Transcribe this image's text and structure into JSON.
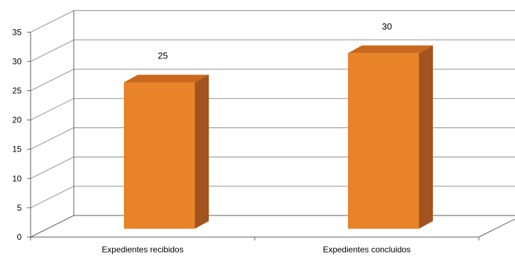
{
  "chart_data": {
    "type": "bar",
    "style": "3d-column",
    "categories": [
      "Expedientes recibidos",
      "Expedientes concluidos"
    ],
    "values": [
      25,
      30
    ],
    "data_labels": [
      "25",
      "30"
    ],
    "title": "",
    "xlabel": "",
    "ylabel": "",
    "ylim": [
      0,
      35
    ],
    "yticks": [
      "0",
      "5",
      "10",
      "15",
      "20",
      "25",
      "30",
      "35"
    ],
    "grid": true,
    "legend": "none",
    "colors": {
      "bar_front": "#E8832A",
      "bar_side": "#A3541E",
      "bar_top": "#C9691F",
      "grid": "#A6A6A6",
      "axis": "#595959"
    }
  }
}
